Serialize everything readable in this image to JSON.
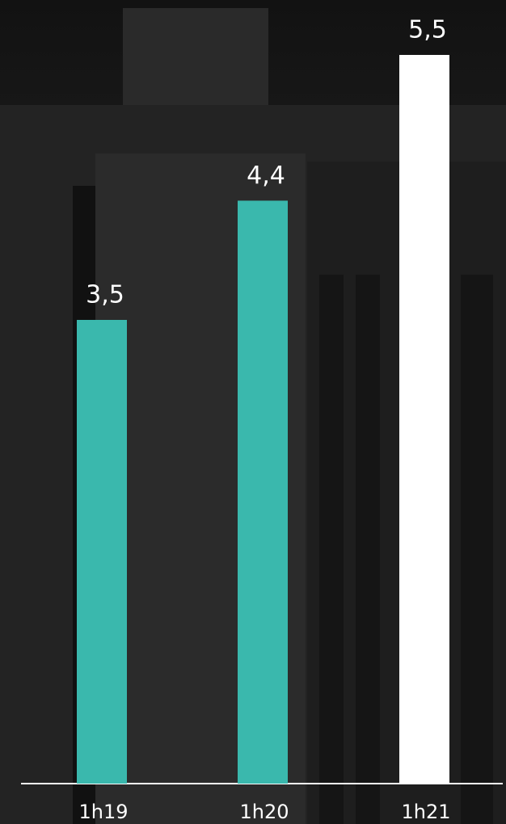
{
  "chart_data": {
    "type": "bar",
    "categories": [
      "1h19",
      "1h20",
      "1h21"
    ],
    "values": [
      3.5,
      4.4,
      5.5
    ],
    "value_labels": [
      "3,5",
      "4,4",
      "5,5"
    ],
    "colors": [
      "#3ab8ad",
      "#3ab8ad",
      "#ffffff"
    ],
    "ylim": [
      0,
      5.5
    ]
  }
}
